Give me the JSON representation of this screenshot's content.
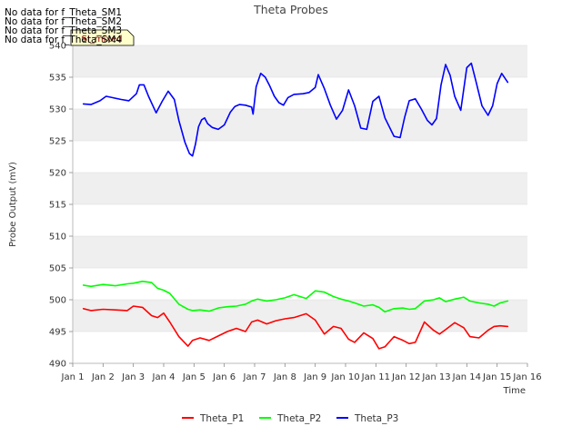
{
  "chart_data": {
    "type": "line",
    "title": "Theta Probes",
    "xlabel": "Time",
    "ylabel": "Probe Output (mV)",
    "xlim": [
      1,
      16
    ],
    "ylim": [
      490,
      540
    ],
    "x_ticks": [
      1,
      2,
      3,
      4,
      5,
      6,
      7,
      8,
      9,
      10,
      11,
      12,
      13,
      14,
      15,
      16
    ],
    "x_tick_labels": [
      "Jan 1",
      "Jan 2",
      "Jan 3",
      "Jan 4",
      "Jan 5",
      "Jan 6",
      "Jan 7",
      "Jan 8",
      "Jan 9",
      "Jan 10",
      "Jan 11",
      "Jan 12",
      "Jan 13",
      "Jan 14",
      "Jan 15",
      "Jan 16"
    ],
    "y_ticks": [
      490,
      495,
      500,
      505,
      510,
      515,
      520,
      525,
      530,
      535,
      540
    ],
    "grid": "horizontal bands",
    "legend_position": "bottom-center",
    "series": [
      {
        "name": "Theta_P1",
        "color": "#ff0000",
        "x": [
          1.35,
          1.6,
          2.0,
          2.4,
          2.8,
          3.0,
          3.3,
          3.6,
          3.8,
          4.0,
          4.2,
          4.5,
          4.8,
          4.95,
          5.2,
          5.5,
          5.8,
          6.1,
          6.4,
          6.7,
          6.9,
          7.1,
          7.4,
          7.7,
          8.0,
          8.3,
          8.7,
          9.0,
          9.3,
          9.6,
          9.85,
          10.1,
          10.3,
          10.6,
          10.9,
          11.1,
          11.3,
          11.6,
          11.9,
          12.1,
          12.3,
          12.6,
          12.9,
          13.1,
          13.3,
          13.6,
          13.9,
          14.1,
          14.4,
          14.7,
          14.9,
          15.1,
          15.35
        ],
        "values": [
          498.6,
          498.3,
          498.5,
          498.4,
          498.3,
          499.0,
          498.8,
          497.5,
          497.2,
          497.9,
          496.5,
          494.2,
          492.7,
          493.6,
          494.0,
          493.6,
          494.3,
          495.0,
          495.5,
          495.0,
          496.5,
          496.8,
          496.2,
          496.7,
          497.0,
          497.2,
          497.8,
          496.8,
          494.6,
          495.8,
          495.5,
          493.8,
          493.3,
          494.8,
          493.9,
          492.3,
          492.6,
          494.2,
          493.6,
          493.1,
          493.3,
          496.5,
          495.2,
          494.6,
          495.3,
          496.4,
          495.6,
          494.2,
          494.0,
          495.2,
          495.8,
          495.9,
          495.8
        ],
        "note_points_source": "estimated"
      },
      {
        "name": "Theta_P2",
        "color": "#00ff00",
        "x": [
          1.35,
          1.6,
          2.0,
          2.4,
          2.8,
          3.0,
          3.3,
          3.6,
          3.8,
          4.0,
          4.2,
          4.5,
          4.8,
          4.95,
          5.2,
          5.5,
          5.8,
          6.1,
          6.4,
          6.7,
          6.9,
          7.1,
          7.4,
          7.7,
          8.0,
          8.3,
          8.7,
          9.0,
          9.3,
          9.6,
          9.85,
          10.1,
          10.3,
          10.6,
          10.9,
          11.1,
          11.3,
          11.6,
          11.9,
          12.1,
          12.3,
          12.6,
          12.9,
          13.1,
          13.3,
          13.6,
          13.9,
          14.1,
          14.4,
          14.7,
          14.9,
          15.1,
          15.35
        ],
        "values": [
          502.3,
          502.1,
          502.4,
          502.2,
          502.5,
          502.6,
          502.9,
          502.7,
          501.8,
          501.5,
          501.0,
          499.3,
          498.5,
          498.3,
          498.4,
          498.2,
          498.7,
          498.9,
          499.0,
          499.3,
          499.8,
          500.1,
          499.8,
          500.0,
          500.3,
          500.8,
          500.2,
          501.4,
          501.2,
          500.5,
          500.1,
          499.8,
          499.5,
          499.0,
          499.2,
          498.8,
          498.1,
          498.6,
          498.7,
          498.5,
          498.6,
          499.8,
          500.0,
          500.3,
          499.7,
          500.1,
          500.4,
          499.8,
          499.5,
          499.3,
          499.0,
          499.5,
          499.8
        ]
      },
      {
        "name": "Theta_P3",
        "color": "#0000ff",
        "x": [
          1.35,
          1.6,
          1.9,
          2.1,
          2.3,
          2.6,
          2.85,
          3.1,
          3.2,
          3.35,
          3.5,
          3.75,
          3.95,
          4.15,
          4.35,
          4.5,
          4.7,
          4.85,
          4.95,
          5.05,
          5.15,
          5.25,
          5.35,
          5.45,
          5.6,
          5.8,
          6.0,
          6.2,
          6.35,
          6.5,
          6.7,
          6.9,
          6.95,
          7.05,
          7.2,
          7.35,
          7.5,
          7.65,
          7.8,
          7.95,
          8.1,
          8.3,
          8.6,
          8.8,
          9.0,
          9.1,
          9.3,
          9.5,
          9.7,
          9.9,
          10.1,
          10.3,
          10.5,
          10.7,
          10.9,
          11.1,
          11.3,
          11.6,
          11.8,
          11.95,
          12.1,
          12.3,
          12.5,
          12.7,
          12.85,
          13.0,
          13.15,
          13.3,
          13.45,
          13.6,
          13.8,
          14.0,
          14.15,
          14.3,
          14.5,
          14.7,
          14.85,
          15.0,
          15.15,
          15.35
        ],
        "values": [
          530.8,
          530.7,
          531.3,
          532.0,
          531.8,
          531.5,
          531.3,
          532.4,
          533.8,
          533.8,
          532.0,
          529.4,
          531.2,
          532.8,
          531.5,
          528.2,
          524.8,
          523.0,
          522.6,
          524.5,
          527.2,
          528.3,
          528.6,
          527.7,
          527.1,
          526.8,
          527.5,
          529.5,
          530.4,
          530.7,
          530.6,
          530.3,
          529.2,
          533.5,
          535.6,
          535.0,
          533.6,
          532.0,
          531.0,
          530.6,
          531.8,
          532.3,
          532.4,
          532.6,
          533.4,
          535.4,
          533.2,
          530.6,
          528.4,
          529.8,
          533.0,
          530.5,
          527.0,
          526.8,
          531.2,
          532.0,
          528.6,
          525.7,
          525.5,
          528.7,
          531.3,
          531.6,
          530.0,
          528.2,
          527.5,
          528.5,
          533.8,
          537.0,
          535.3,
          532.0,
          529.8,
          536.5,
          537.2,
          534.4,
          530.5,
          529.0,
          530.5,
          534.0,
          535.6,
          534.2
        ]
      }
    ]
  },
  "no_data_messages": [
    "No data for f_Theta_SM1",
    "No data for f_Theta_SM2",
    "No data for f_Theta_SM3",
    "No data for f_Theta_SM4"
  ],
  "flag_label": "SI_mixed",
  "colors": {
    "band": "#efefef",
    "grid": "#dddddd",
    "axis": "#bbbbbb",
    "flag_bg": "#ffffcc"
  }
}
